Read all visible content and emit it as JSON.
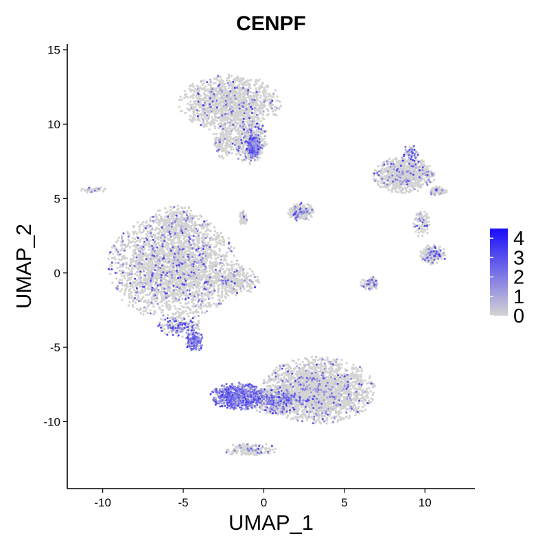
{
  "chart_data": {
    "type": "scatter",
    "title": "CENPF",
    "xlabel": "UMAP_1",
    "ylabel": "UMAP_2",
    "xlim": [
      -12.2,
      13.1
    ],
    "ylim": [
      -14.5,
      15.4
    ],
    "x_ticks": [
      {
        "value": -10,
        "label": "-10"
      },
      {
        "value": -5,
        "label": "-5"
      },
      {
        "value": 0,
        "label": "0"
      },
      {
        "value": 5,
        "label": "5"
      },
      {
        "value": 10,
        "label": "10"
      }
    ],
    "y_ticks": [
      {
        "value": -10,
        "label": "-10"
      },
      {
        "value": -5,
        "label": "-5"
      },
      {
        "value": 0,
        "label": "0"
      },
      {
        "value": 5,
        "label": "5"
      },
      {
        "value": 10,
        "label": "10"
      },
      {
        "value": 15,
        "label": "15"
      }
    ],
    "grid": false,
    "color_scale": {
      "low_color": "#d3d3d3",
      "high_color": "#1a0dfa",
      "min": 0,
      "max": 4.5,
      "legend_position": "right",
      "legend_ticks": [
        {
          "value": 4,
          "label": "4"
        },
        {
          "value": 3,
          "label": "3"
        },
        {
          "value": 2,
          "label": "2"
        },
        {
          "value": 1,
          "label": "1"
        },
        {
          "value": 0,
          "label": "0"
        }
      ]
    },
    "clusters": [
      {
        "name": "top-cluster",
        "cx": -2.1,
        "cy": 11.4,
        "rx": 3.1,
        "ry": 1.9,
        "n": 1300,
        "expr": 0.08
      },
      {
        "name": "top-cluster-stem",
        "cx": -0.9,
        "cy": 8.9,
        "rx": 1.1,
        "ry": 1.6,
        "n": 420,
        "expr": 0.18
      },
      {
        "name": "top-cluster-neck",
        "cx": -2.5,
        "cy": 8.8,
        "rx": 0.7,
        "ry": 1.1,
        "n": 160,
        "expr": 0.05
      },
      {
        "name": "top-cycling-patch",
        "cx": -0.6,
        "cy": 8.5,
        "rx": 0.45,
        "ry": 0.8,
        "n": 260,
        "expr": 0.85
      },
      {
        "name": "left-cluster",
        "cx": -5.6,
        "cy": 0.4,
        "rx": 4.0,
        "ry": 3.5,
        "n": 2600,
        "expr": 0.1
      },
      {
        "name": "left-cluster-peak",
        "cx": -5.3,
        "cy": 3.4,
        "rx": 1.7,
        "ry": 1.1,
        "n": 260,
        "expr": 0.06
      },
      {
        "name": "left-cluster-tail",
        "cx": -1.9,
        "cy": -0.5,
        "rx": 1.6,
        "ry": 1.0,
        "n": 280,
        "expr": 0.06
      },
      {
        "name": "lower-left-strand",
        "cx": -5.2,
        "cy": -3.6,
        "rx": 1.4,
        "ry": 0.7,
        "n": 180,
        "expr": 0.45
      },
      {
        "name": "lower-left-cycling",
        "cx": -4.3,
        "cy": -4.6,
        "rx": 0.55,
        "ry": 0.7,
        "n": 170,
        "expr": 0.75
      },
      {
        "name": "bottom-cluster",
        "cx": 3.4,
        "cy": -7.9,
        "rx": 3.5,
        "ry": 2.2,
        "n": 2200,
        "expr": 0.08
      },
      {
        "name": "bottom-cycling",
        "cx": -1.6,
        "cy": -8.3,
        "rx": 1.7,
        "ry": 0.9,
        "n": 700,
        "expr": 0.8
      },
      {
        "name": "bottom-transition",
        "cx": 0.7,
        "cy": -8.6,
        "rx": 1.6,
        "ry": 0.9,
        "n": 500,
        "expr": 0.32
      },
      {
        "name": "bottom-tail",
        "cx": -0.8,
        "cy": -11.9,
        "rx": 1.6,
        "ry": 0.45,
        "n": 160,
        "expr": 0.08
      },
      {
        "name": "right-cluster",
        "cx": 8.7,
        "cy": 6.6,
        "rx": 1.9,
        "ry": 1.2,
        "n": 800,
        "expr": 0.08
      },
      {
        "name": "right-cluster-top",
        "cx": 9.1,
        "cy": 8.1,
        "rx": 0.5,
        "ry": 0.5,
        "n": 60,
        "expr": 0.35
      },
      {
        "name": "right-cluster-arm",
        "cx": 10.8,
        "cy": 5.5,
        "rx": 0.6,
        "ry": 0.3,
        "n": 70,
        "expr": 0.08
      },
      {
        "name": "right-cluster-stream",
        "cx": 9.8,
        "cy": 3.3,
        "rx": 0.5,
        "ry": 0.9,
        "n": 90,
        "expr": 0.12
      },
      {
        "name": "right-lower-cluster",
        "cx": 10.5,
        "cy": 1.2,
        "rx": 0.8,
        "ry": 0.7,
        "n": 200,
        "expr": 0.15
      },
      {
        "name": "right-small-cluster",
        "cx": 6.6,
        "cy": -0.7,
        "rx": 0.6,
        "ry": 0.45,
        "n": 110,
        "expr": 0.2
      },
      {
        "name": "center-cluster",
        "cx": 2.3,
        "cy": 4.1,
        "rx": 0.8,
        "ry": 0.6,
        "n": 260,
        "expr": 0.15
      },
      {
        "name": "center-small",
        "cx": -1.3,
        "cy": 3.7,
        "rx": 0.25,
        "ry": 0.5,
        "n": 60,
        "expr": 0.05
      },
      {
        "name": "far-left-strand",
        "cx": -10.6,
        "cy": 5.6,
        "rx": 0.8,
        "ry": 0.2,
        "n": 40,
        "expr": 0.05
      }
    ]
  }
}
